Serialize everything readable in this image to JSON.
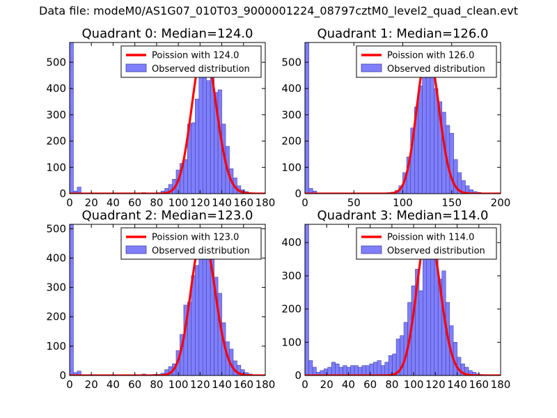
{
  "figure_title": "Data file: modeM0/AS1G07_010T03_9000001224_08797cztM0_level2_quad_clean.evt",
  "colors": {
    "poisson": "#ff0000",
    "bars_fill": "#7f7fff",
    "bars_edge": "#40409f"
  },
  "chart_data": [
    {
      "type": "bar",
      "title": "Quadrant 0: Median=124.0",
      "median": 124.0,
      "legend": {
        "poisson": "Poission with 124.0",
        "observed": "Observed distribution",
        "placement": "top-right"
      },
      "xlim": [
        0,
        180
      ],
      "ylim": [
        0,
        575
      ],
      "xticks": [
        0,
        20,
        40,
        60,
        80,
        100,
        120,
        140,
        160,
        180
      ],
      "yticks": [
        0,
        100,
        200,
        300,
        400,
        500
      ],
      "bins": [
        [
          0,
          575
        ],
        [
          3.5,
          10
        ],
        [
          7,
          25
        ],
        [
          10.5,
          2
        ],
        [
          14,
          2
        ],
        [
          17.5,
          1
        ],
        [
          21,
          1
        ],
        [
          24.5,
          1
        ],
        [
          28,
          1
        ],
        [
          31.5,
          1
        ],
        [
          35,
          1
        ],
        [
          38.5,
          1
        ],
        [
          42,
          1
        ],
        [
          45.5,
          1
        ],
        [
          49,
          1
        ],
        [
          52.5,
          1
        ],
        [
          56,
          1
        ],
        [
          59.5,
          1
        ],
        [
          63,
          2
        ],
        [
          66.5,
          4
        ],
        [
          70,
          3
        ],
        [
          73.5,
          2
        ],
        [
          77,
          3
        ],
        [
          80.5,
          4
        ],
        [
          84,
          10
        ],
        [
          87.5,
          20
        ],
        [
          91,
          35
        ],
        [
          94.5,
          55
        ],
        [
          98,
          90
        ],
        [
          101.5,
          115
        ],
        [
          105,
          130
        ],
        [
          108.5,
          265
        ],
        [
          112,
          270
        ],
        [
          115.5,
          360
        ],
        [
          119,
          550
        ],
        [
          122.5,
          510
        ],
        [
          126,
          430
        ],
        [
          129.5,
          555
        ],
        [
          133,
          385
        ],
        [
          136.5,
          395
        ],
        [
          140,
          265
        ],
        [
          143.5,
          180
        ],
        [
          147,
          95
        ],
        [
          150.5,
          60
        ],
        [
          154,
          30
        ],
        [
          157.5,
          15
        ],
        [
          161,
          8
        ],
        [
          164.5,
          4
        ]
      ],
      "bin_width": 3.5
    },
    {
      "type": "bar",
      "title": "Quadrant 1: Median=126.0",
      "median": 126.0,
      "legend": {
        "poisson": "Poission with 126.0",
        "observed": "Observed distribution",
        "placement": "top-right"
      },
      "xlim": [
        0,
        200
      ],
      "ylim": [
        0,
        575
      ],
      "xticks": [
        0,
        50,
        100,
        150,
        200
      ],
      "yticks": [
        0,
        100,
        200,
        300,
        400,
        500
      ],
      "bins": [
        [
          0,
          575
        ],
        [
          4,
          20
        ],
        [
          8,
          10
        ],
        [
          12,
          3
        ],
        [
          16,
          2
        ],
        [
          20,
          1
        ],
        [
          24,
          1
        ],
        [
          28,
          1
        ],
        [
          32,
          1
        ],
        [
          36,
          1
        ],
        [
          40,
          1
        ],
        [
          44,
          1
        ],
        [
          48,
          1
        ],
        [
          52,
          1
        ],
        [
          56,
          1
        ],
        [
          60,
          1
        ],
        [
          64,
          2
        ],
        [
          68,
          1
        ],
        [
          72,
          1
        ],
        [
          76,
          2
        ],
        [
          80,
          3
        ],
        [
          84,
          4
        ],
        [
          88,
          6
        ],
        [
          92,
          12
        ],
        [
          96,
          30
        ],
        [
          100,
          80
        ],
        [
          104,
          140
        ],
        [
          108,
          250
        ],
        [
          112,
          330
        ],
        [
          116,
          410
        ],
        [
          120,
          480
        ],
        [
          124,
          530
        ],
        [
          128,
          545
        ],
        [
          132,
          400
        ],
        [
          136,
          350
        ],
        [
          140,
          310
        ],
        [
          144,
          260
        ],
        [
          148,
          230
        ],
        [
          152,
          130
        ],
        [
          156,
          80
        ],
        [
          160,
          50
        ],
        [
          164,
          30
        ],
        [
          168,
          15
        ],
        [
          172,
          8
        ],
        [
          176,
          5
        ],
        [
          180,
          3
        ],
        [
          184,
          2
        ],
        [
          188,
          1
        ]
      ],
      "bin_width": 4
    },
    {
      "type": "bar",
      "title": "Quadrant 2: Median=123.0",
      "median": 123.0,
      "legend": {
        "poisson": "Poission with 123.0",
        "observed": "Observed distribution",
        "placement": "top-right"
      },
      "xlim": [
        0,
        180
      ],
      "ylim": [
        0,
        515
      ],
      "xticks": [
        0,
        20,
        40,
        60,
        80,
        100,
        120,
        140,
        160,
        180
      ],
      "yticks": [
        0,
        100,
        200,
        300,
        400,
        500
      ],
      "bins": [
        [
          0,
          515
        ],
        [
          3.5,
          10
        ],
        [
          7,
          15
        ],
        [
          10.5,
          2
        ],
        [
          14,
          1
        ],
        [
          17.5,
          1
        ],
        [
          21,
          1
        ],
        [
          24.5,
          1
        ],
        [
          28,
          1
        ],
        [
          31.5,
          1
        ],
        [
          35,
          1
        ],
        [
          38.5,
          1
        ],
        [
          42,
          1
        ],
        [
          45.5,
          1
        ],
        [
          49,
          1
        ],
        [
          52.5,
          1
        ],
        [
          56,
          1
        ],
        [
          59.5,
          1
        ],
        [
          63,
          2
        ],
        [
          66.5,
          5
        ],
        [
          70,
          2
        ],
        [
          73.5,
          3
        ],
        [
          77,
          4
        ],
        [
          80.5,
          4
        ],
        [
          84,
          8
        ],
        [
          87.5,
          20
        ],
        [
          91,
          30
        ],
        [
          94.5,
          40
        ],
        [
          98,
          85
        ],
        [
          101.5,
          140
        ],
        [
          105,
          240
        ],
        [
          108.5,
          250
        ],
        [
          112,
          340
        ],
        [
          115.5,
          375
        ],
        [
          119,
          480
        ],
        [
          122.5,
          480
        ],
        [
          126,
          470
        ],
        [
          129.5,
          460
        ],
        [
          133,
          335
        ],
        [
          136.5,
          280
        ],
        [
          140,
          180
        ],
        [
          143.5,
          115
        ],
        [
          147,
          90
        ],
        [
          150.5,
          50
        ],
        [
          154,
          35
        ],
        [
          157.5,
          20
        ],
        [
          161,
          10
        ],
        [
          164.5,
          5
        ]
      ],
      "bin_width": 3.5
    },
    {
      "type": "bar",
      "title": "Quadrant 3: Median=114.0",
      "median": 114.0,
      "legend": {
        "poisson": "Poission with 114.0",
        "observed": "Observed distribution",
        "placement": "top-right"
      },
      "xlim": [
        0,
        180
      ],
      "ylim": [
        0,
        455
      ],
      "xticks": [
        0,
        20,
        40,
        60,
        80,
        100,
        120,
        140,
        160,
        180
      ],
      "yticks": [
        0,
        100,
        200,
        300,
        400
      ],
      "bins": [
        [
          0,
          455
        ],
        [
          3.5,
          45
        ],
        [
          7,
          25
        ],
        [
          10.5,
          10
        ],
        [
          14,
          15
        ],
        [
          17.5,
          20
        ],
        [
          21,
          25
        ],
        [
          24.5,
          40
        ],
        [
          28,
          35
        ],
        [
          31.5,
          25
        ],
        [
          35,
          30
        ],
        [
          38.5,
          25
        ],
        [
          42,
          30
        ],
        [
          45.5,
          30
        ],
        [
          49,
          25
        ],
        [
          52.5,
          30
        ],
        [
          56,
          30
        ],
        [
          59.5,
          35
        ],
        [
          63,
          40
        ],
        [
          66.5,
          45
        ],
        [
          70,
          30
        ],
        [
          73.5,
          40
        ],
        [
          77,
          60
        ],
        [
          80.5,
          65
        ],
        [
          84,
          110
        ],
        [
          87.5,
          120
        ],
        [
          91,
          160
        ],
        [
          94.5,
          220
        ],
        [
          98,
          270
        ],
        [
          101.5,
          320
        ],
        [
          105,
          255
        ],
        [
          108.5,
          380
        ],
        [
          112,
          440
        ],
        [
          115.5,
          430
        ],
        [
          119,
          370
        ],
        [
          122.5,
          290
        ],
        [
          126,
          315
        ],
        [
          129.5,
          220
        ],
        [
          133,
          150
        ],
        [
          136.5,
          100
        ],
        [
          140,
          55
        ],
        [
          143.5,
          35
        ],
        [
          147,
          25
        ],
        [
          150.5,
          15
        ],
        [
          154,
          10
        ],
        [
          157.5,
          5
        ],
        [
          161,
          3
        ],
        [
          164.5,
          2
        ]
      ],
      "bin_width": 3.5
    }
  ]
}
